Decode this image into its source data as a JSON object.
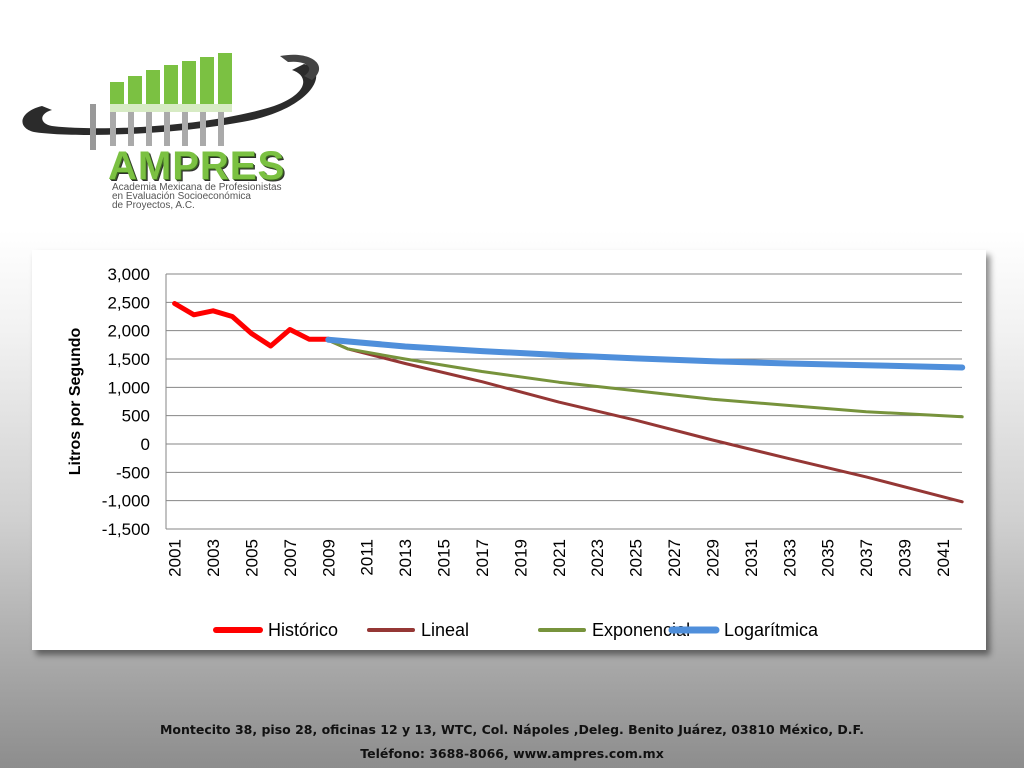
{
  "logo": {
    "brand": "AMPRES",
    "tagline_lines": [
      "Academia Mexicana de Profesionistas",
      "en Evaluación Socioeconómica",
      "de Proyectos, A.C."
    ],
    "colors": {
      "green": "#7bc142",
      "dark": "#2b2b2b",
      "gray": "#bdbdbd"
    }
  },
  "footer": {
    "address": "Montecito 38, piso 28, oficinas 12 y 13, WTC, Col. Nápoles ,Deleg. Benito Juárez, 03810 México, D.F.",
    "contact": "Teléfono: 3688-8066, www.ampres.com.mx"
  },
  "chart_data": {
    "type": "line",
    "ylabel": "Litros  por  Segundo",
    "xlabel": "",
    "ylim": [
      -1500,
      3000
    ],
    "yticks": [
      3000,
      2500,
      2000,
      1500,
      1000,
      500,
      0,
      -500,
      -1000,
      -1500
    ],
    "ytick_labels": [
      "3,000",
      "2,500",
      "2,000",
      "1,500",
      "1,000",
      "500",
      "0",
      "-500",
      "-1,000",
      "-1,500"
    ],
    "xlim": [
      2001,
      2042
    ],
    "xticks": [
      2001,
      2003,
      2005,
      2007,
      2009,
      2011,
      2013,
      2015,
      2017,
      2019,
      2021,
      2023,
      2025,
      2027,
      2029,
      2031,
      2033,
      2035,
      2037,
      2039,
      2041
    ],
    "grid": true,
    "legend_position": "bottom",
    "series": [
      {
        "name": "Histórico",
        "color": "#ff0000",
        "width": 5,
        "points": [
          [
            2001,
            2480
          ],
          [
            2002,
            2280
          ],
          [
            2003,
            2350
          ],
          [
            2004,
            2250
          ],
          [
            2005,
            1950
          ],
          [
            2006,
            1730
          ],
          [
            2007,
            2020
          ],
          [
            2008,
            1850
          ],
          [
            2009,
            1850
          ]
        ]
      },
      {
        "name": "Lineal",
        "color": "#953735",
        "width": 3,
        "points": [
          [
            2009,
            1830
          ],
          [
            2010,
            1680
          ],
          [
            2013,
            1420
          ],
          [
            2017,
            1100
          ],
          [
            2021,
            740
          ],
          [
            2025,
            420
          ],
          [
            2029,
            70
          ],
          [
            2033,
            -260
          ],
          [
            2037,
            -580
          ],
          [
            2042,
            -1020
          ]
        ]
      },
      {
        "name": "Exponencial",
        "color": "#77933c",
        "width": 3,
        "points": [
          [
            2009,
            1830
          ],
          [
            2010,
            1680
          ],
          [
            2013,
            1500
          ],
          [
            2017,
            1280
          ],
          [
            2021,
            1090
          ],
          [
            2025,
            940
          ],
          [
            2029,
            790
          ],
          [
            2033,
            680
          ],
          [
            2037,
            570
          ],
          [
            2042,
            480
          ]
        ]
      },
      {
        "name": "Logarítmica",
        "color": "#4f8fdb",
        "width": 6,
        "points": [
          [
            2009,
            1840
          ],
          [
            2013,
            1720
          ],
          [
            2017,
            1640
          ],
          [
            2021,
            1570
          ],
          [
            2025,
            1510
          ],
          [
            2029,
            1460
          ],
          [
            2033,
            1420
          ],
          [
            2037,
            1390
          ],
          [
            2042,
            1350
          ]
        ]
      }
    ]
  }
}
